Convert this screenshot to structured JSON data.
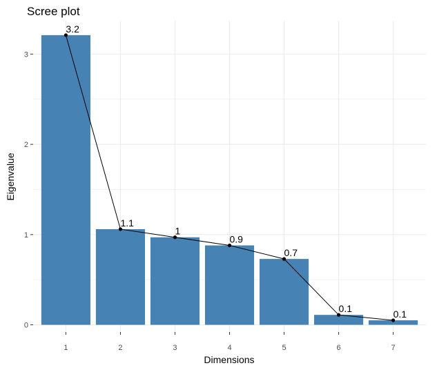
{
  "chart_data": {
    "type": "bar",
    "title": "Scree plot",
    "xlabel": "Dimensions",
    "ylabel": "Eigenvalue",
    "categories": [
      "1",
      "2",
      "3",
      "4",
      "5",
      "6",
      "7"
    ],
    "values": [
      3.21,
      1.06,
      0.97,
      0.88,
      0.73,
      0.11,
      0.05
    ],
    "data_labels": [
      "3.2",
      "1.1",
      "1",
      "0.9",
      "0.7",
      "0.1",
      "0.1"
    ],
    "line_overlay": true,
    "ylim": [
      -0.08,
      3.37
    ],
    "yticks": [
      0,
      1,
      2,
      3
    ],
    "grid": true,
    "colors": {
      "bar": "#4682b4",
      "line": "#000000",
      "grid": "#ebebeb",
      "panel": "#ffffff"
    }
  }
}
